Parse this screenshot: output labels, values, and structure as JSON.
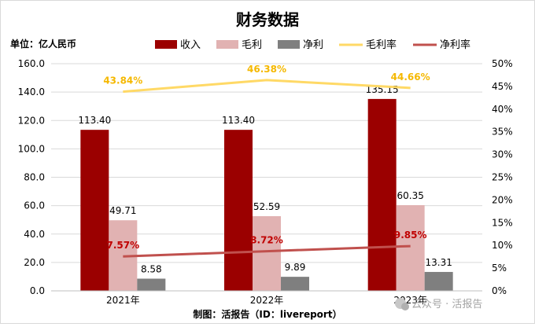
{
  "chart_data": {
    "type": "bar",
    "title": "财务数据",
    "unit_label": "单位：亿人民币",
    "source_note": "制图：活报告（ID：livereport）",
    "watermark": "云众号 · 活报告",
    "categories": [
      "2021年",
      "2022年",
      "2023年"
    ],
    "series": [
      {
        "name": "收入",
        "type": "bar",
        "axis": "left",
        "color": "#9b0000",
        "values": [
          113.4,
          113.4,
          135.15
        ],
        "labels": [
          "113.40",
          "113.40",
          "135.15"
        ]
      },
      {
        "name": "毛利",
        "type": "bar",
        "axis": "left",
        "color": "#e1b2b2",
        "values": [
          49.71,
          52.59,
          60.35
        ],
        "labels": [
          "49.71",
          "52.59",
          "60.35"
        ]
      },
      {
        "name": "净利",
        "type": "bar",
        "axis": "left",
        "color": "#7f7f7f",
        "values": [
          8.58,
          9.89,
          13.31
        ],
        "labels": [
          "8.58",
          "9.89",
          "13.31"
        ]
      },
      {
        "name": "毛利率",
        "type": "line",
        "axis": "right",
        "color": "#ffd966",
        "label_color": "#f5b800",
        "values": [
          43.84,
          46.38,
          44.66
        ],
        "labels": [
          "43.84%",
          "46.38%",
          "44.66%"
        ]
      },
      {
        "name": "净利率",
        "type": "line",
        "axis": "right",
        "color": "#c0504d",
        "label_color": "#c00000",
        "values": [
          7.57,
          8.72,
          9.85
        ],
        "labels": [
          "7.57%",
          "8.72%",
          "9.85%"
        ]
      }
    ],
    "y_left": {
      "min": 0,
      "max": 160,
      "step": 20,
      "ticks": [
        "0.0",
        "20.0",
        "40.0",
        "60.0",
        "80.0",
        "100.0",
        "120.0",
        "140.0",
        "160.0"
      ]
    },
    "y_right": {
      "min": 0,
      "max": 50,
      "step": 5,
      "ticks": [
        "0%",
        "5%",
        "10%",
        "15%",
        "20%",
        "25%",
        "30%",
        "35%",
        "40%",
        "45%",
        "50%"
      ]
    },
    "grid": true,
    "legend_position": "top"
  }
}
